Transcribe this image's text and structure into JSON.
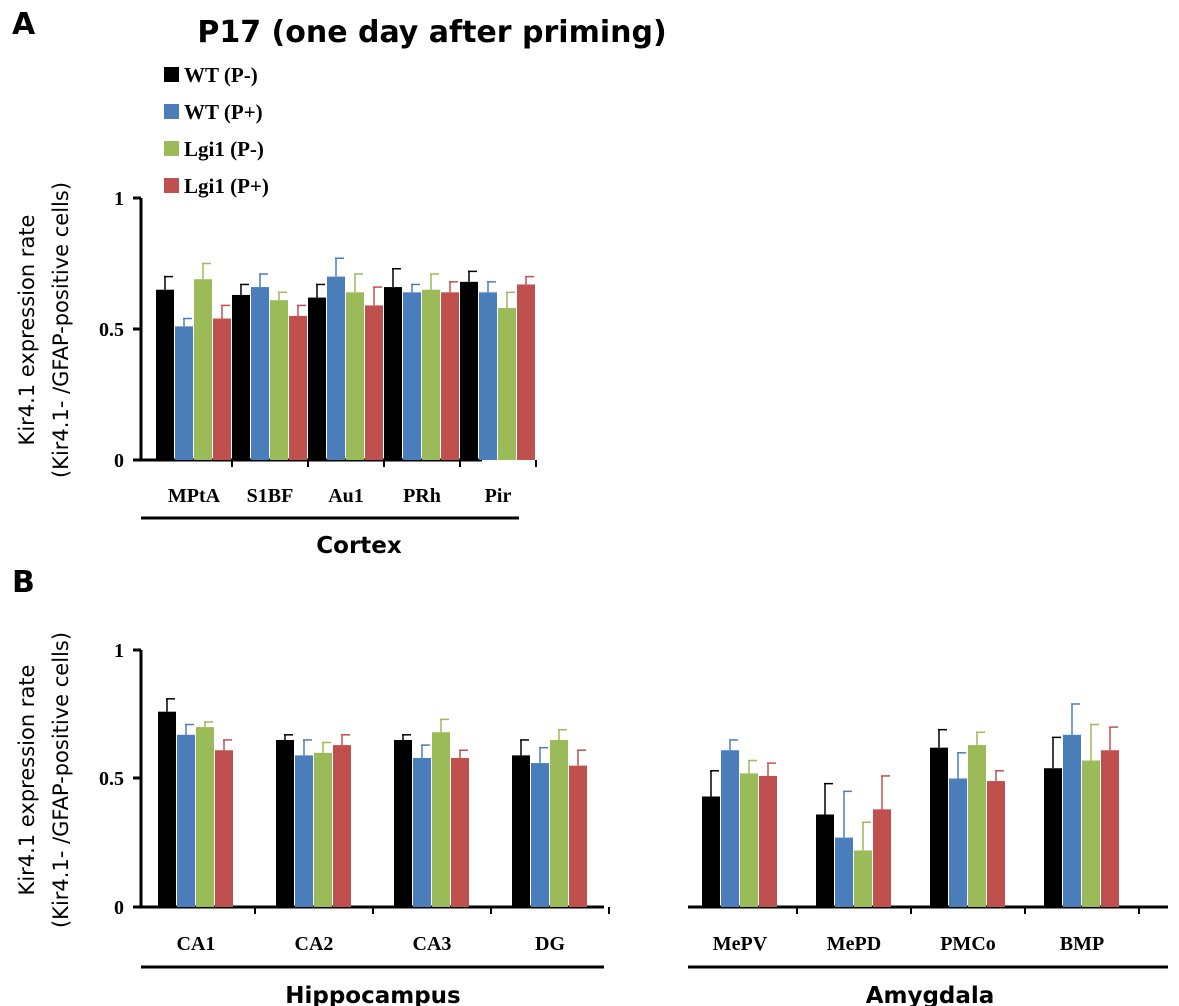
{
  "figure": {
    "title": "P17 (one day after priming)",
    "legend": [
      {
        "label": "WT (P-)",
        "color": "#000000"
      },
      {
        "label": "WT (P+)",
        "color": "#4a7ebb"
      },
      {
        "label": "Lgi1 (P-)",
        "color": "#9bbb59"
      },
      {
        "label": "Lgi1 (P+)",
        "color": "#c0504d"
      }
    ]
  },
  "chart_data": [
    {
      "type": "bar",
      "panel_label": "A",
      "ylabel_line1": "Kir4.1 expression rate",
      "ylabel_line2": "(Kir4.1- /GFAP-positive cells)",
      "ylim": [
        0,
        1
      ],
      "yticks": [
        "0",
        "0.5",
        "1"
      ],
      "groups": [
        {
          "label": "Cortex",
          "categories": [
            "MPtA",
            "S1BF",
            "Au1",
            "PRh",
            "Pir"
          ],
          "series": [
            {
              "name": "WT (P-)",
              "values": [
                0.65,
                0.63,
                0.62,
                0.66,
                0.68
              ],
              "errors": [
                0.05,
                0.04,
                0.05,
                0.07,
                0.04
              ]
            },
            {
              "name": "WT (P+)",
              "values": [
                0.51,
                0.66,
                0.7,
                0.64,
                0.64
              ],
              "errors": [
                0.03,
                0.05,
                0.07,
                0.03,
                0.04
              ]
            },
            {
              "name": "Lgi1 (P-)",
              "values": [
                0.69,
                0.61,
                0.64,
                0.65,
                0.58
              ],
              "errors": [
                0.06,
                0.03,
                0.07,
                0.06,
                0.06
              ]
            },
            {
              "name": "Lgi1 (P+)",
              "values": [
                0.54,
                0.55,
                0.59,
                0.64,
                0.67
              ],
              "errors": [
                0.05,
                0.04,
                0.07,
                0.04,
                0.03
              ]
            }
          ]
        }
      ]
    },
    {
      "type": "bar",
      "panel_label": "B",
      "ylabel_line1": "Kir4.1 expression rate",
      "ylabel_line2": "(Kir4.1- /GFAP-positive cells)",
      "ylim": [
        0,
        1
      ],
      "yticks": [
        "0",
        "0.5",
        "1"
      ],
      "groups": [
        {
          "label": "Hippocampus",
          "categories": [
            "CA1",
            "CA2",
            "CA3",
            "DG"
          ],
          "series": [
            {
              "name": "WT (P-)",
              "values": [
                0.76,
                0.65,
                0.65,
                0.59
              ],
              "errors": [
                0.05,
                0.02,
                0.02,
                0.06
              ]
            },
            {
              "name": "WT (P+)",
              "values": [
                0.67,
                0.59,
                0.58,
                0.56
              ],
              "errors": [
                0.04,
                0.06,
                0.05,
                0.06
              ]
            },
            {
              "name": "Lgi1 (P-)",
              "values": [
                0.7,
                0.6,
                0.68,
                0.65
              ],
              "errors": [
                0.02,
                0.04,
                0.05,
                0.04
              ]
            },
            {
              "name": "Lgi1 (P+)",
              "values": [
                0.61,
                0.63,
                0.58,
                0.55
              ],
              "errors": [
                0.04,
                0.04,
                0.03,
                0.06
              ]
            }
          ]
        },
        {
          "label": "Amygdala",
          "categories": [
            "MePV",
            "MePD",
            "PMCo",
            "BMP"
          ],
          "series": [
            {
              "name": "WT (P-)",
              "values": [
                0.43,
                0.36,
                0.62,
                0.54
              ],
              "errors": [
                0.1,
                0.12,
                0.07,
                0.12
              ]
            },
            {
              "name": "WT (P+)",
              "values": [
                0.61,
                0.27,
                0.5,
                0.67
              ],
              "errors": [
                0.04,
                0.18,
                0.1,
                0.12
              ]
            },
            {
              "name": "Lgi1 (P-)",
              "values": [
                0.52,
                0.22,
                0.63,
                0.57
              ],
              "errors": [
                0.05,
                0.11,
                0.05,
                0.14
              ]
            },
            {
              "name": "Lgi1 (P+)",
              "values": [
                0.51,
                0.38,
                0.49,
                0.61
              ],
              "errors": [
                0.05,
                0.13,
                0.04,
                0.09
              ]
            }
          ]
        }
      ]
    }
  ]
}
